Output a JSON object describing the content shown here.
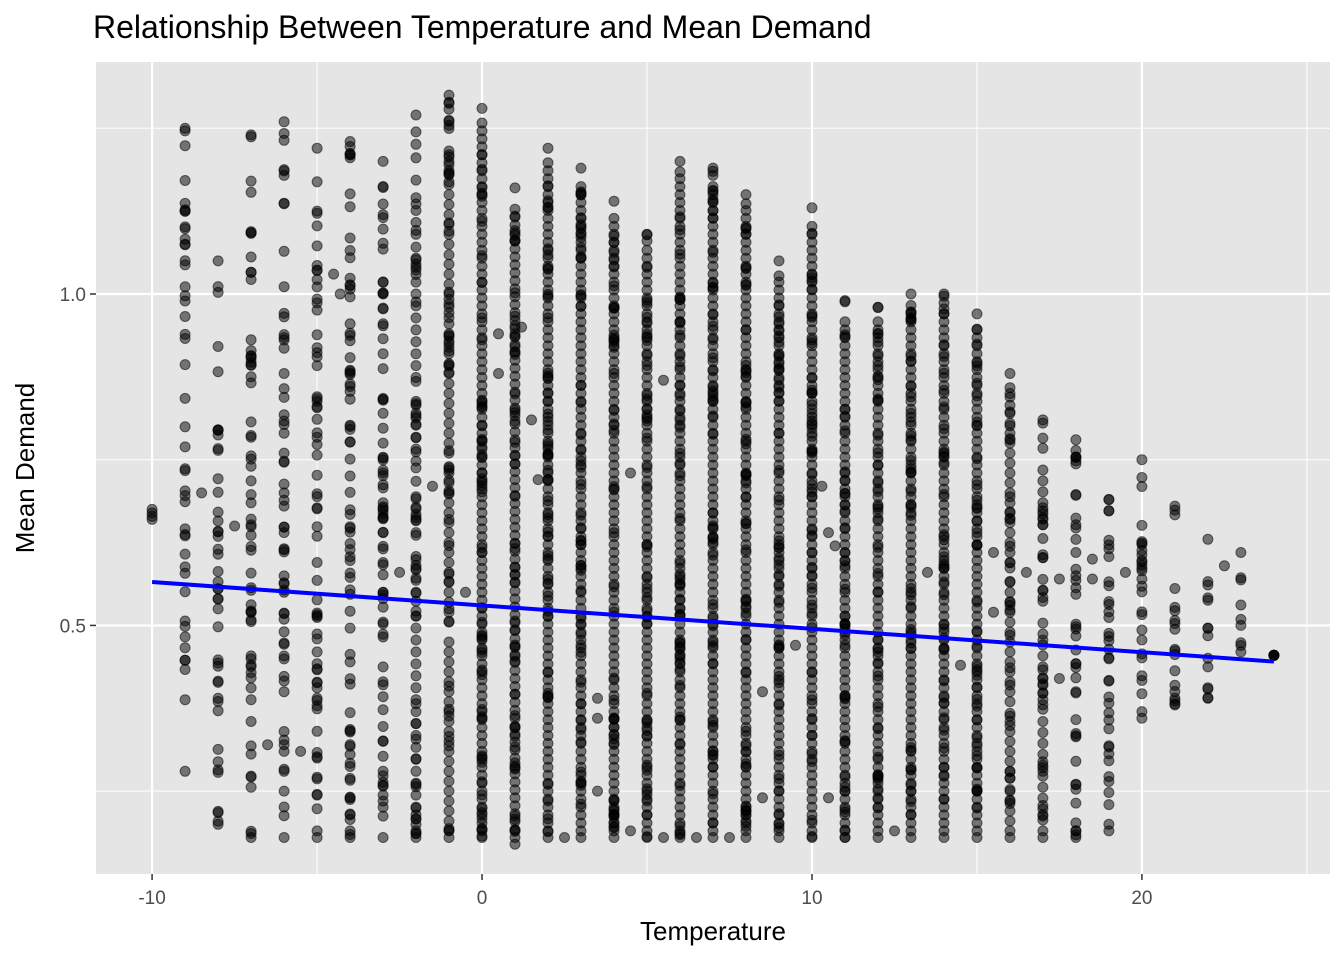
{
  "chart_data": {
    "type": "scatter",
    "title": "Relationship Between Temperature and Mean Demand",
    "xlabel": "Temperature",
    "ylabel": "Mean Demand",
    "xlim": [
      -11.7,
      25.7
    ],
    "ylim": [
      0.125,
      1.35
    ],
    "x_ticks": [
      -10,
      0,
      10,
      20
    ],
    "x_tick_labels": [
      "-10",
      "0",
      "10",
      "20"
    ],
    "y_ticks": [
      0.5,
      1.0
    ],
    "y_tick_labels": [
      "0.5",
      "1.0"
    ],
    "grid": true,
    "legend": "none",
    "point_color": "#000000",
    "point_opacity": 0.5,
    "trend_color": "#0000ff",
    "trend_line": {
      "x": [
        -10,
        24
      ],
      "y": [
        0.5655,
        0.4455
      ]
    },
    "columns": [
      {
        "x": -10,
        "min": 0.66,
        "max": 0.675,
        "mid": 0.665,
        "dense": 0
      },
      {
        "x": -9,
        "min": 0.28,
        "max": 1.25,
        "mid": 0.62,
        "dense": 0
      },
      {
        "x": -8,
        "min": 0.2,
        "max": 1.05,
        "mid": 0.62,
        "dense": 0.2
      },
      {
        "x": -7,
        "min": 0.18,
        "max": 1.24,
        "mid": 0.62,
        "dense": 0.3
      },
      {
        "x": -6,
        "min": 0.18,
        "max": 1.26,
        "mid": 0.62,
        "dense": 0.4
      },
      {
        "x": -5,
        "min": 0.18,
        "max": 1.22,
        "mid": 0.62,
        "dense": 0.5
      },
      {
        "x": -4,
        "min": 0.18,
        "max": 1.23,
        "mid": 0.62,
        "dense": 0.55
      },
      {
        "x": -3,
        "min": 0.18,
        "max": 1.2,
        "mid": 0.62,
        "dense": 0.65
      },
      {
        "x": -2,
        "min": 0.18,
        "max": 1.27,
        "mid": 0.62,
        "dense": 0.8
      },
      {
        "x": -1,
        "min": 0.18,
        "max": 1.3,
        "mid": 0.62,
        "dense": 0.9
      },
      {
        "x": 0,
        "min": 0.18,
        "max": 1.28,
        "mid": 0.62,
        "dense": 1
      },
      {
        "x": 1,
        "min": 0.17,
        "max": 1.16,
        "mid": 0.62,
        "dense": 1
      },
      {
        "x": 2,
        "min": 0.18,
        "max": 1.22,
        "mid": 0.62,
        "dense": 1
      },
      {
        "x": 3,
        "min": 0.18,
        "max": 1.19,
        "mid": 0.62,
        "dense": 1
      },
      {
        "x": 4,
        "min": 0.18,
        "max": 1.14,
        "mid": 0.62,
        "dense": 1
      },
      {
        "x": 5,
        "min": 0.18,
        "max": 1.09,
        "mid": 0.62,
        "dense": 1
      },
      {
        "x": 6,
        "min": 0.18,
        "max": 1.2,
        "mid": 0.62,
        "dense": 1
      },
      {
        "x": 7,
        "min": 0.18,
        "max": 1.19,
        "mid": 0.62,
        "dense": 1
      },
      {
        "x": 8,
        "min": 0.18,
        "max": 1.15,
        "mid": 0.62,
        "dense": 1
      },
      {
        "x": 9,
        "min": 0.18,
        "max": 1.05,
        "mid": 0.62,
        "dense": 1
      },
      {
        "x": 10,
        "min": 0.18,
        "max": 1.13,
        "mid": 0.62,
        "dense": 1
      },
      {
        "x": 11,
        "min": 0.18,
        "max": 0.99,
        "mid": 0.62,
        "dense": 1
      },
      {
        "x": 12,
        "min": 0.18,
        "max": 0.98,
        "mid": 0.62,
        "dense": 1
      },
      {
        "x": 13,
        "min": 0.18,
        "max": 1.0,
        "mid": 0.62,
        "dense": 1
      },
      {
        "x": 14,
        "min": 0.18,
        "max": 1.0,
        "mid": 0.62,
        "dense": 1
      },
      {
        "x": 15,
        "min": 0.18,
        "max": 0.97,
        "mid": 0.62,
        "dense": 1
      },
      {
        "x": 16,
        "min": 0.18,
        "max": 0.88,
        "mid": 0.62,
        "dense": 0.9
      },
      {
        "x": 17,
        "min": 0.18,
        "max": 0.81,
        "mid": 0.62,
        "dense": 0.85
      },
      {
        "x": 18,
        "min": 0.18,
        "max": 0.78,
        "mid": 0.62,
        "dense": 0.7
      },
      {
        "x": 19,
        "min": 0.19,
        "max": 0.69,
        "mid": 0.55,
        "dense": 0.6
      },
      {
        "x": 20,
        "min": 0.36,
        "max": 0.75,
        "mid": 0.55,
        "dense": 0.5
      },
      {
        "x": 21,
        "min": 0.38,
        "max": 0.68,
        "mid": 0.55,
        "dense": 0.3
      },
      {
        "x": 22,
        "min": 0.39,
        "max": 0.63,
        "mid": 0.55,
        "dense": 0.15
      },
      {
        "x": 23,
        "min": 0.46,
        "max": 0.61,
        "mid": 0.55,
        "dense": 0.1
      },
      {
        "x": 24,
        "min": 0.455,
        "max": 0.455,
        "mid": 0.455,
        "dense": 0
      }
    ],
    "scattered_points": [
      [
        -8.5,
        0.7
      ],
      [
        -7.5,
        0.65
      ],
      [
        -6.5,
        0.32
      ],
      [
        -5.5,
        0.31
      ],
      [
        -4.5,
        1.03
      ],
      [
        -4.3,
        1.0
      ],
      [
        -2.5,
        0.58
      ],
      [
        -1.5,
        0.71
      ],
      [
        -0.5,
        0.55
      ],
      [
        0.5,
        0.94
      ],
      [
        0.5,
        0.88
      ],
      [
        1.2,
        0.95
      ],
      [
        1.5,
        0.81
      ],
      [
        1.7,
        0.72
      ],
      [
        2.5,
        0.18
      ],
      [
        3.5,
        0.39
      ],
      [
        3.5,
        0.36
      ],
      [
        3.5,
        0.25
      ],
      [
        4.5,
        0.73
      ],
      [
        4.5,
        0.19
      ],
      [
        5.5,
        0.87
      ],
      [
        5.5,
        0.18
      ],
      [
        6.5,
        0.18
      ],
      [
        7.5,
        0.18
      ],
      [
        8.5,
        0.4
      ],
      [
        8.5,
        0.24
      ],
      [
        9.5,
        0.47
      ],
      [
        10.3,
        0.71
      ],
      [
        10.5,
        0.64
      ],
      [
        10.5,
        0.24
      ],
      [
        10.7,
        0.62
      ],
      [
        12.5,
        0.19
      ],
      [
        13.5,
        0.58
      ],
      [
        14.5,
        0.44
      ],
      [
        15.5,
        0.61
      ],
      [
        15.5,
        0.52
      ],
      [
        16.5,
        0.58
      ],
      [
        17.5,
        0.57
      ],
      [
        17.5,
        0.42
      ],
      [
        18.5,
        0.6
      ],
      [
        18.5,
        0.57
      ],
      [
        19.5,
        0.58
      ],
      [
        22.5,
        0.59
      ],
      [
        24,
        0.455
      ]
    ]
  }
}
